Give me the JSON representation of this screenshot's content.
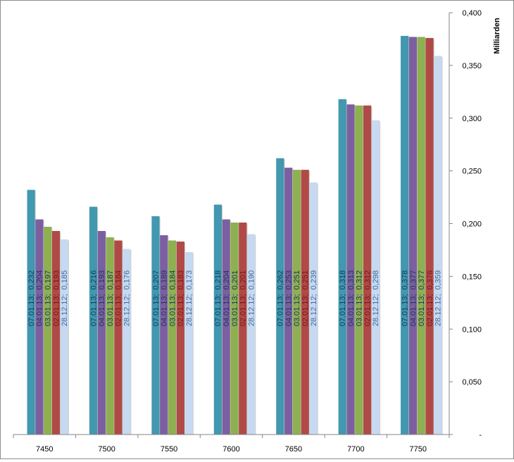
{
  "chart_data": {
    "type": "bar",
    "categories": [
      "7450",
      "7500",
      "7550",
      "7600",
      "7650",
      "7700",
      "7750"
    ],
    "series": [
      {
        "name": "07.01.13",
        "color": "#4198af",
        "values": [
          0.232,
          0.216,
          0.207,
          0.218,
          0.262,
          0.318,
          0.378
        ]
      },
      {
        "name": "04.01.13",
        "color": "#7c5fa0",
        "values": [
          0.204,
          0.193,
          0.189,
          0.204,
          0.253,
          0.313,
          0.377
        ]
      },
      {
        "name": "03.01.13",
        "color": "#8eb050",
        "values": [
          0.197,
          0.187,
          0.184,
          0.201,
          0.251,
          0.312,
          0.377
        ]
      },
      {
        "name": "02.01.13",
        "color": "#b04a46",
        "values": [
          0.193,
          0.184,
          0.183,
          0.201,
          0.251,
          0.312,
          0.376
        ]
      },
      {
        "name": "28.12.12",
        "color": "#c6d9f1",
        "values": [
          0.185,
          0.176,
          0.173,
          0.19,
          0.239,
          0.298,
          0.359
        ]
      }
    ],
    "data_label_colors": [
      "#17375e",
      "#17375e",
      "#17375e",
      "#7a1515",
      "#3f6ba3"
    ],
    "ylabel": "Milliarden",
    "ylim": [
      0,
      0.4
    ],
    "yticks": [
      "-",
      "0,050",
      "0,100",
      "0,150",
      "0,200",
      "0,250",
      "0,300",
      "0,350",
      "0,400"
    ],
    "ytick_values": [
      0,
      0.05,
      0.1,
      0.15,
      0.2,
      0.25,
      0.3,
      0.35,
      0.4
    ],
    "y_axis_position": "right",
    "grid": false,
    "legend": "none",
    "data_labels": [
      [
        "07.01.13;  0,232",
        "04.01.13;  0,204",
        "03.01.13;  0,197",
        "02.01.13;  0,193",
        "28.12.12;  0,185"
      ],
      [
        "07.01.13;  0,216",
        "04.01.13;  0,193",
        "03.01.13;  0,187",
        "02.01.13;  0,184",
        "28.12.12;  0,176"
      ],
      [
        "07.01.13;  0,207",
        "04.01.13;  0,189",
        "03.01.13;  0,184",
        "02.01.13;  0,183",
        "28.12.12;  0,173"
      ],
      [
        "07.01.13;  0,218",
        "04.01.13;  0,204",
        "03.01.13;  0,201",
        "02.01.13;  0,201",
        "28.12.12;  0,190"
      ],
      [
        "07.01.13;  0,262",
        "04.01.13;  0,253",
        "03.01.13;  0,251",
        "02.01.13;  0,251",
        "28.12.12;  0,239"
      ],
      [
        "07.01.13;  0,318",
        "04.01.13;  0,313",
        "03.01.13;  0,312",
        "02.01.13;  0,312",
        "28.12.12;  0,298"
      ],
      [
        "07.01.13;  0,378",
        "04.01.13;  0,377",
        "03.01.13;  0,377",
        "02.01.13;  0,376",
        "28.12.12;  0,359"
      ]
    ]
  }
}
